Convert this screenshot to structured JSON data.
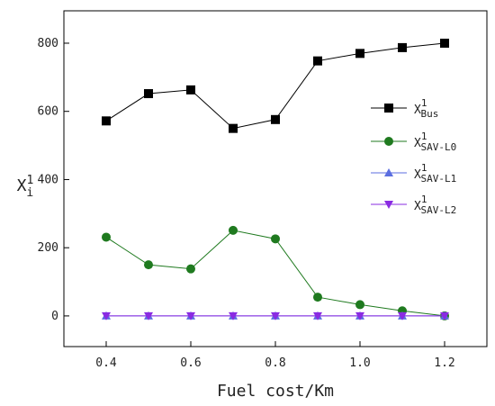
{
  "chart_data": {
    "type": "line",
    "title": "",
    "xlabel": "Fuel cost/Km",
    "ylabel": {
      "base": "X",
      "sub": "i",
      "sup": "1"
    },
    "xlim": [
      0.3,
      1.3
    ],
    "ylim": [
      -90,
      895
    ],
    "x": [
      0.4,
      0.5,
      0.6,
      0.7,
      0.8,
      0.9,
      1.0,
      1.1,
      1.2
    ],
    "x_ticks": [
      "0.4",
      "0.6",
      "0.8",
      "1.0",
      "1.2"
    ],
    "y_ticks": [
      "0",
      "200",
      "400",
      "600",
      "800"
    ],
    "grid": false,
    "legend_position": "right",
    "series": [
      {
        "name": "X^1_Bus",
        "label": {
          "base": "X",
          "sup": "1",
          "sub": "Bus"
        },
        "color": "#000000",
        "marker": "square",
        "values": [
          572,
          652,
          663,
          550,
          576,
          748,
          770,
          787,
          800
        ]
      },
      {
        "name": "X^1_SAV-L0",
        "label": {
          "base": "X",
          "sup": "1",
          "sub": "SAV-L0"
        },
        "color": "#1f7a1f",
        "marker": "circle",
        "values": [
          231,
          150,
          138,
          251,
          226,
          55,
          33,
          15,
          0
        ]
      },
      {
        "name": "X^1_SAV-L1",
        "label": {
          "base": "X",
          "sup": "1",
          "sub": "SAV-L1"
        },
        "color": "#5b6ee0",
        "marker": "triangle-up",
        "values": [
          0,
          0,
          0,
          0,
          0,
          0,
          0,
          0,
          0
        ]
      },
      {
        "name": "X^1_SAV-L2",
        "label": {
          "base": "X",
          "sup": "1",
          "sub": "SAV-L2"
        },
        "color": "#8a2be2",
        "marker": "triangle-down",
        "values": [
          0,
          0,
          0,
          0,
          0,
          0,
          0,
          0,
          0
        ]
      }
    ]
  }
}
